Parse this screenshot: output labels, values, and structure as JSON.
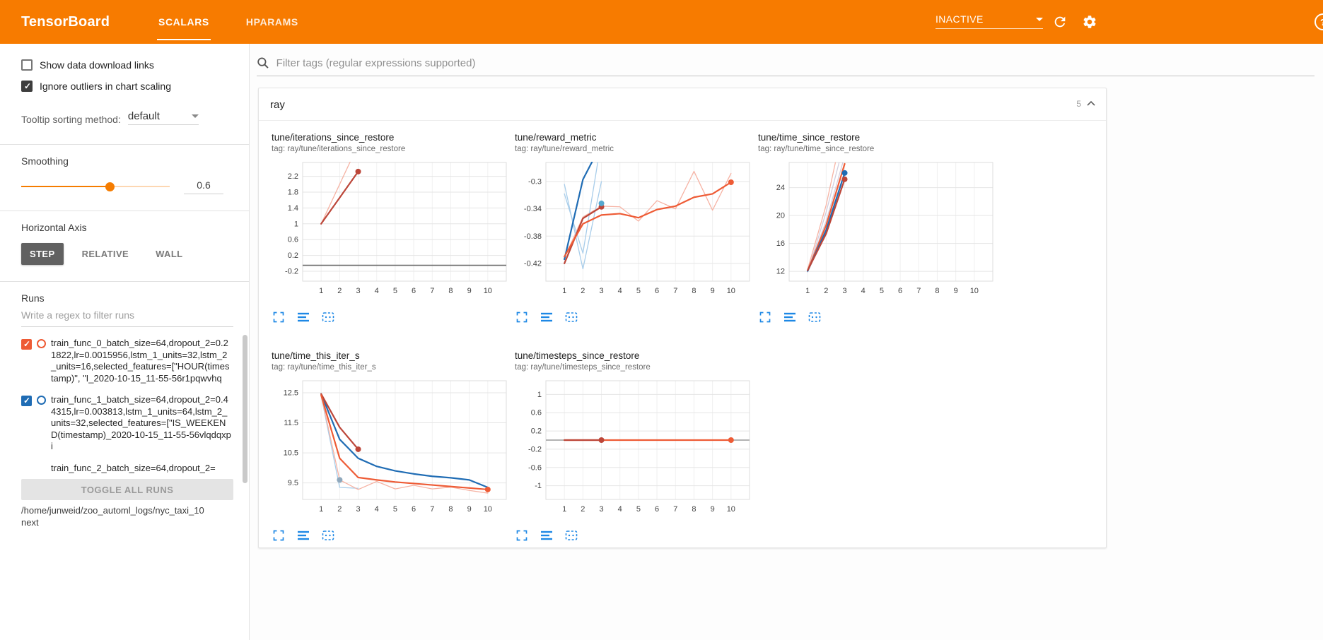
{
  "app": {
    "title": "TensorBoard"
  },
  "colors": {
    "header_orange": "#f77b00",
    "accent_blue": "#1e88e5",
    "run_orange": "#ee5b35",
    "run_blue": "#1f6cb4",
    "run_red": "#bc4639"
  },
  "header": {
    "tabs": [
      {
        "label": "SCALARS",
        "active": true
      },
      {
        "label": "HPARAMS",
        "active": false
      }
    ],
    "status": {
      "label": "INACTIVE"
    },
    "help_label": "?"
  },
  "sidebar": {
    "checkboxes": [
      {
        "label": "Show data download links",
        "checked": false
      },
      {
        "label": "Ignore outliers in chart scaling",
        "checked": true
      }
    ],
    "tooltip_sort": {
      "label": "Tooltip sorting method:",
      "value": "default"
    },
    "smoothing": {
      "label": "Smoothing",
      "value": "0.6",
      "slider_percent": 60
    },
    "horizontal_axis": {
      "label": "Horizontal Axis",
      "options": [
        {
          "label": "STEP",
          "active": true
        },
        {
          "label": "RELATIVE",
          "active": false
        },
        {
          "label": "WALL",
          "active": false
        }
      ]
    },
    "runs": {
      "label": "Runs",
      "filter_placeholder": "Write a regex to filter runs",
      "items": [
        {
          "label": "train_func_0_batch_size=64,dropout_2=0.21822,lr=0.0015956,lstm_1_units=32,lstm_2_units=16,selected_features=[\"HOUR(timestamp)\", \"I_2020-10-15_11-55-56r1pqwvhq",
          "color": "#ee5b35",
          "checked": true,
          "show_checkbox": true
        },
        {
          "label": "train_func_1_batch_size=64,dropout_2=0.44315,lr=0.003813,lstm_1_units=64,lstm_2_units=32,selected_features=[\"IS_WEEKEND(timestamp)_2020-10-15_11-55-56vlqdqxpi",
          "color": "#1f6cb4",
          "checked": true,
          "show_checkbox": true
        },
        {
          "label": "train_func_2_batch_size=64,dropout_2=",
          "color": "#bc4639",
          "checked": true,
          "show_checkbox": false
        }
      ],
      "toggle_all_label": "TOGGLE ALL RUNS"
    },
    "log_path": "/home/junweid/zoo_automl_logs/nyc_taxi_10next"
  },
  "main": {
    "filter_placeholder": "Filter tags (regular expressions supported)",
    "section": {
      "title": "ray",
      "count": "5"
    }
  },
  "chart_data": [
    {
      "type": "line",
      "title": "tune/iterations_since_restore",
      "subtitle": "tag: ray/tune/iterations_since_restore",
      "x_range": [
        0,
        11
      ],
      "x_ticks": [
        1,
        2,
        3,
        4,
        5,
        6,
        7,
        8,
        9,
        10
      ],
      "y_range": [
        -0.45,
        2.55
      ],
      "y_ticks": [
        -0.2,
        0.2,
        0.6,
        1,
        1.4,
        1.8,
        2.2
      ],
      "series": [
        {
          "name": "train_func_0-raw",
          "color": "#f6b3a4",
          "width": 1.3,
          "points": [
            [
              1,
              1
            ],
            [
              2,
              2
            ],
            [
              3,
              3
            ]
          ]
        },
        {
          "name": "zero-baseline",
          "color": "#6b6b6b",
          "width": 1.6,
          "points": [
            [
              0,
              -0.05
            ],
            [
              11,
              -0.05
            ]
          ]
        },
        {
          "name": "train_func_2-smoothed",
          "color": "#bc4639",
          "width": 2.2,
          "points": [
            [
              1,
              1
            ],
            [
              2,
              1.66
            ],
            [
              3,
              2.32
            ]
          ],
          "end_dot": true
        }
      ]
    },
    {
      "type": "line",
      "title": "tune/reward_metric",
      "subtitle": "tag: ray/tune/reward_metric",
      "x_range": [
        0,
        11
      ],
      "x_ticks": [
        1,
        2,
        3,
        4,
        5,
        6,
        7,
        8,
        9,
        10
      ],
      "y_range": [
        -0.446,
        -0.272
      ],
      "y_ticks": [
        -0.42,
        -0.38,
        -0.34,
        -0.3
      ],
      "series": [
        {
          "name": "train_func_0-raw",
          "color": "#f6b3a4",
          "width": 1.3,
          "points": [
            [
              1,
              -0.412
            ],
            [
              2,
              -0.352
            ],
            [
              3,
              -0.336
            ],
            [
              4,
              -0.337
            ],
            [
              5,
              -0.358
            ],
            [
              6,
              -0.328
            ],
            [
              7,
              -0.34
            ],
            [
              8,
              -0.285
            ],
            [
              9,
              -0.342
            ],
            [
              10,
              -0.288
            ]
          ]
        },
        {
          "name": "train_func_1-raw",
          "color": "#a8cdea",
          "width": 1.3,
          "points": [
            [
              1,
              -0.304
            ],
            [
              2,
              -0.428
            ],
            [
              3,
              -0.3
            ]
          ]
        },
        {
          "name": "train_func_1-raw-2",
          "color": "#a8cdea",
          "width": 1.3,
          "points": [
            [
              1,
              -0.318
            ],
            [
              2,
              -0.405
            ],
            [
              2.8,
              -0.272
            ]
          ]
        },
        {
          "name": "train_func_1-smoothed",
          "color": "#1f6cb4",
          "width": 2.2,
          "points": [
            [
              1,
              -0.414
            ],
            [
              2,
              -0.297
            ],
            [
              2.8,
              -0.255
            ]
          ]
        },
        {
          "name": "train_func_2-smoothed",
          "color": "#bc4639",
          "width": 2.2,
          "points": [
            [
              1,
              -0.42
            ],
            [
              2,
              -0.354
            ],
            [
              3,
              -0.337
            ]
          ],
          "end_dot": true
        },
        {
          "name": "train_func_0-smoothed",
          "color": "#ee5b35",
          "width": 2.2,
          "points": [
            [
              1,
              -0.41
            ],
            [
              2,
              -0.362
            ],
            [
              3,
              -0.349
            ],
            [
              4,
              -0.347
            ],
            [
              5,
              -0.353
            ],
            [
              6,
              -0.341
            ],
            [
              7,
              -0.336
            ],
            [
              8,
              -0.323
            ],
            [
              9,
              -0.318
            ],
            [
              10,
              -0.301
            ]
          ],
          "end_dot": true
        },
        {
          "name": "endpoint-marker",
          "color": "#56a8cf",
          "width": 0,
          "points": [
            [
              3,
              -0.332
            ]
          ],
          "dot_only": true
        }
      ]
    },
    {
      "type": "line",
      "title": "tune/time_since_restore",
      "subtitle": "tag: ray/tune/time_since_restore",
      "x_range": [
        0,
        11
      ],
      "x_ticks": [
        1,
        2,
        3,
        4,
        5,
        6,
        7,
        8,
        9,
        10
      ],
      "y_range": [
        10.6,
        27.6
      ],
      "y_ticks": [
        12,
        16,
        20,
        24
      ],
      "series": [
        {
          "name": "faint-run-1",
          "color": "#d2cede",
          "width": 1.3,
          "points": [
            [
              1,
              12.1
            ],
            [
              2,
              19.2
            ],
            [
              2.9,
              27.6
            ]
          ]
        },
        {
          "name": "faint-run-2",
          "color": "#d2cede",
          "width": 1.3,
          "points": [
            [
              1,
              11.9
            ],
            [
              2,
              20.5
            ],
            [
              2.7,
              27.6
            ]
          ]
        },
        {
          "name": "train_func_0-raw",
          "color": "#f6b3a4",
          "width": 1.3,
          "points": [
            [
              1,
              12.3
            ],
            [
              2,
              21.5
            ],
            [
              2.5,
              27.6
            ]
          ]
        },
        {
          "name": "train_func_0-smoothed",
          "color": "#ee5b35",
          "width": 2.2,
          "points": [
            [
              1,
              12.1
            ],
            [
              2,
              18.6
            ],
            [
              3,
              27.4
            ]
          ]
        },
        {
          "name": "train_func_1-smoothed",
          "color": "#1f6cb4",
          "width": 2.2,
          "points": [
            [
              1,
              12.05
            ],
            [
              2,
              17.9
            ],
            [
              3,
              26.1
            ]
          ],
          "end_dot": true
        },
        {
          "name": "train_func_2-smoothed",
          "color": "#bc4639",
          "width": 2.2,
          "points": [
            [
              1,
              12.15
            ],
            [
              2,
              17.4
            ],
            [
              3,
              25.2
            ]
          ],
          "end_dot": true
        }
      ]
    },
    {
      "type": "line",
      "title": "tune/time_this_iter_s",
      "subtitle": "tag: ray/tune/time_this_iter_s",
      "x_range": [
        0,
        11
      ],
      "x_ticks": [
        1,
        2,
        3,
        4,
        5,
        6,
        7,
        8,
        9,
        10
      ],
      "y_range": [
        8.95,
        12.9
      ],
      "y_ticks": [
        9.5,
        10.5,
        11.5,
        12.5
      ],
      "series": [
        {
          "name": "train_func_1-raw",
          "color": "#a8cdea",
          "width": 1.3,
          "points": [
            [
              1,
              12.4
            ],
            [
              2,
              9.35
            ],
            [
              3,
              9.32
            ]
          ]
        },
        {
          "name": "train_func_0-raw",
          "color": "#f6b3a4",
          "width": 1.3,
          "points": [
            [
              1,
              12.42
            ],
            [
              2,
              9.6
            ],
            [
              3,
              9.28
            ],
            [
              4,
              9.55
            ],
            [
              5,
              9.3
            ],
            [
              6,
              9.42
            ],
            [
              7,
              9.3
            ],
            [
              8,
              9.36
            ],
            [
              9,
              9.25
            ],
            [
              10,
              9.16
            ]
          ]
        },
        {
          "name": "train_func_1-smoothed",
          "color": "#1f6cb4",
          "width": 2.2,
          "points": [
            [
              1,
              12.46
            ],
            [
              2,
              10.95
            ],
            [
              3,
              10.32
            ],
            [
              4,
              10.05
            ],
            [
              5,
              9.9
            ],
            [
              6,
              9.8
            ],
            [
              7,
              9.72
            ],
            [
              8,
              9.67
            ],
            [
              9,
              9.6
            ],
            [
              10,
              9.35
            ]
          ]
        },
        {
          "name": "train_func_2-smoothed",
          "color": "#bc4639",
          "width": 2.2,
          "points": [
            [
              1,
              12.46
            ],
            [
              2,
              11.35
            ],
            [
              3,
              10.62
            ]
          ],
          "end_dot": true
        },
        {
          "name": "train_func_0-smoothed",
          "color": "#ee5b35",
          "width": 2.2,
          "points": [
            [
              1,
              12.42
            ],
            [
              2,
              10.32
            ],
            [
              3,
              9.68
            ],
            [
              4,
              9.6
            ],
            [
              5,
              9.53
            ],
            [
              6,
              9.48
            ],
            [
              7,
              9.43
            ],
            [
              8,
              9.38
            ],
            [
              9,
              9.33
            ],
            [
              10,
              9.28
            ]
          ],
          "end_dot": true
        },
        {
          "name": "endpoint-marker",
          "color": "#8fa8bc",
          "width": 0,
          "points": [
            [
              2,
              9.6
            ]
          ],
          "dot_only": true
        }
      ]
    },
    {
      "type": "line",
      "title": "tune/timesteps_since_restore",
      "subtitle": "tag: ray/tune/timesteps_since_restore",
      "x_range": [
        0,
        11
      ],
      "x_ticks": [
        1,
        2,
        3,
        4,
        5,
        6,
        7,
        8,
        9,
        10
      ],
      "y_range": [
        -1.3,
        1.3
      ],
      "y_ticks": [
        -1,
        -0.6,
        -0.2,
        0.2,
        0.6,
        1
      ],
      "series": [
        {
          "name": "zero-baseline",
          "color": "#9a9a9a",
          "width": 1.4,
          "points": [
            [
              0,
              0
            ],
            [
              11,
              0
            ]
          ]
        },
        {
          "name": "train_func_0-smoothed",
          "color": "#ee5b35",
          "width": 2.2,
          "points": [
            [
              1,
              0
            ],
            [
              10,
              0
            ]
          ],
          "end_dot": true
        },
        {
          "name": "train_func_2-smoothed",
          "color": "#bc4639",
          "width": 2.2,
          "points": [
            [
              1,
              0
            ],
            [
              3,
              0
            ]
          ],
          "end_dot": true
        }
      ]
    }
  ]
}
